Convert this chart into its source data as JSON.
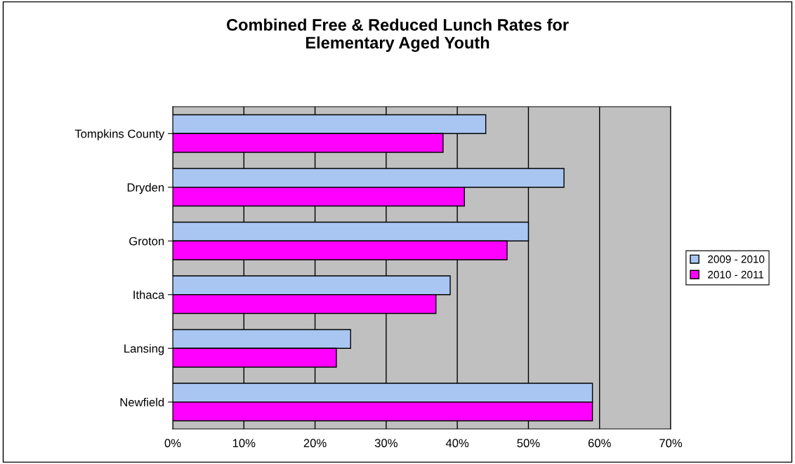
{
  "chart_data": {
    "type": "bar",
    "orientation": "horizontal",
    "title": "Combined Free & Reduced Lunch Rates for\nElementary Aged Youth",
    "categories": [
      "Tompkins County",
      "Dryden",
      "Groton",
      "Ithaca",
      "Lansing",
      "Newfield"
    ],
    "series": [
      {
        "name": "2009 - 2010",
        "color": "#a9c6f2",
        "values": [
          44,
          55,
          50,
          39,
          25,
          59
        ]
      },
      {
        "name": "2010 - 2011",
        "color": "#ff00ff",
        "values": [
          38,
          41,
          47,
          37,
          23,
          59
        ]
      }
    ],
    "xlim": [
      0,
      70
    ],
    "xticks": [
      {
        "value": 0,
        "label": "0%"
      },
      {
        "value": 10,
        "label": "10%"
      },
      {
        "value": 20,
        "label": "20%"
      },
      {
        "value": 30,
        "label": "30%"
      },
      {
        "value": 40,
        "label": "40%"
      },
      {
        "value": 50,
        "label": "50%"
      },
      {
        "value": 60,
        "label": "60%"
      },
      {
        "value": 70,
        "label": "70%"
      }
    ],
    "grid": "x",
    "legend": "right"
  }
}
